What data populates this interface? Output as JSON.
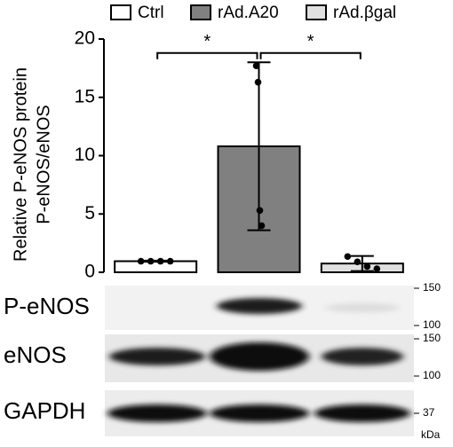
{
  "chart_data": {
    "type": "bar",
    "ylabel": [
      "Relative P-eNOS protein",
      "P-eNOS/eNOS"
    ],
    "categories": [
      "Ctrl",
      "rAd.A20",
      "rAd.βgal"
    ],
    "values": [
      0.95,
      10.8,
      0.75
    ],
    "errors": [
      0.05,
      7.2,
      0.65
    ],
    "points": [
      [
        0.95,
        0.95,
        0.95,
        0.95
      ],
      [
        17.7,
        16.3,
        5.3,
        4.0
      ],
      [
        1.35,
        0.9,
        0.5,
        0.3
      ]
    ],
    "colors": [
      "#ffffff",
      "#808080",
      "#e0e0e0"
    ],
    "ylim": [
      0,
      20
    ],
    "yticks": [
      0,
      5,
      10,
      15,
      20
    ],
    "legend": "top",
    "annotations": [
      {
        "label": "*",
        "from": 0,
        "to": 1,
        "y": 18.8
      },
      {
        "label": "*",
        "from": 1,
        "to": 2,
        "y": 18.8
      }
    ]
  },
  "blot": {
    "rows": [
      {
        "label": "P-eNOS",
        "markers": [
          150,
          100
        ]
      },
      {
        "label": "eNOS",
        "markers": [
          150,
          100
        ]
      },
      {
        "label": "GAPDH",
        "markers": [
          37
        ]
      }
    ],
    "unit": "kDa"
  }
}
